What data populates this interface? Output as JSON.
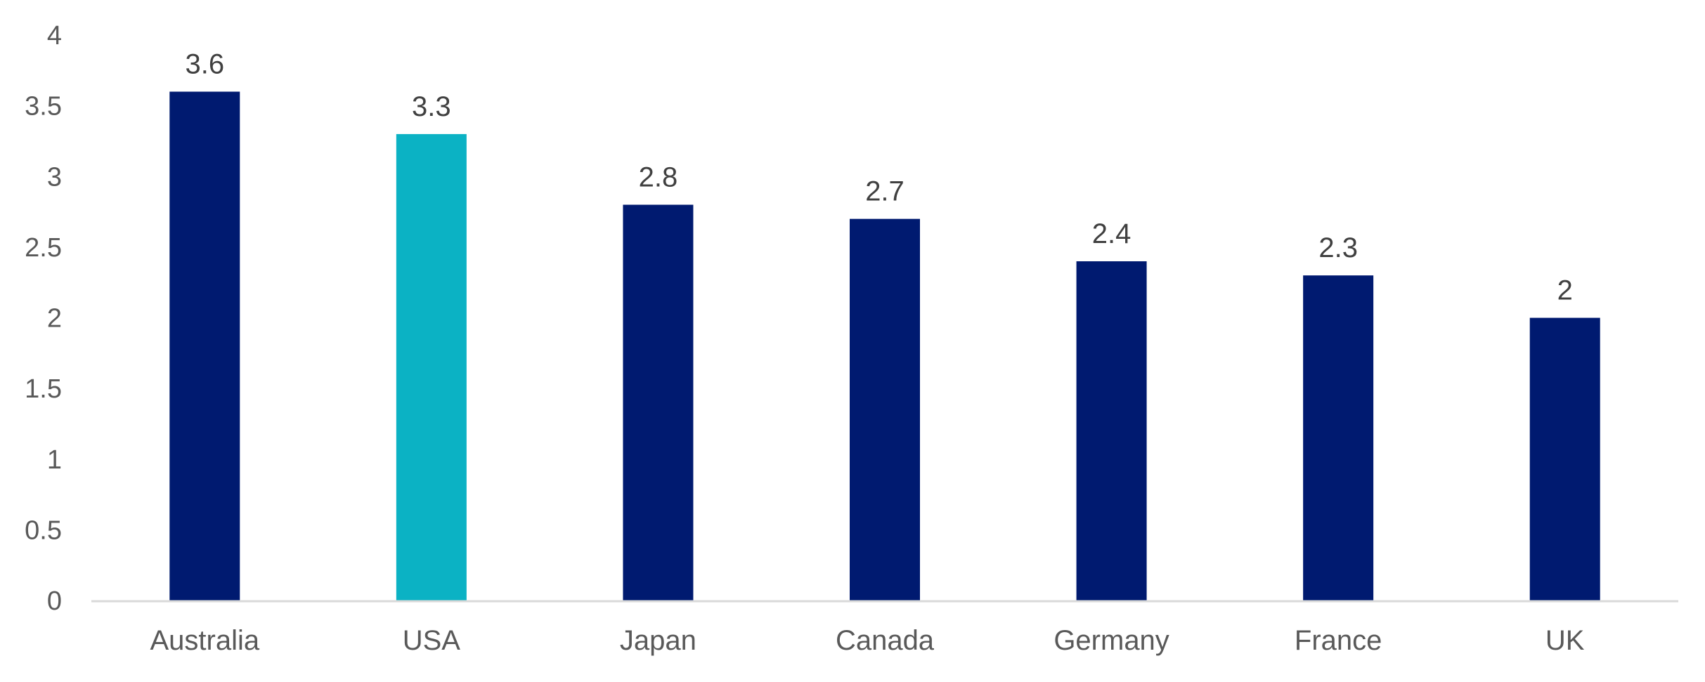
{
  "chart_data": {
    "type": "bar",
    "categories": [
      "Australia",
      "USA",
      "Japan",
      "Canada",
      "Germany",
      "France",
      "UK"
    ],
    "series": [
      {
        "values": [
          3.6,
          3.3,
          2.8,
          2.7,
          2.4,
          2.3,
          2
        ],
        "data_labels": [
          "3.6",
          "3.3",
          "2.8",
          "2.7",
          "2.4",
          "2.3",
          "2"
        ],
        "colors": [
          "#001a70",
          "#0bb2c4",
          "#001a70",
          "#001a70",
          "#001a70",
          "#001a70",
          "#001a70"
        ]
      }
    ],
    "ylim": [
      0,
      4
    ],
    "y_ticks": [
      0,
      0.5,
      1,
      1.5,
      2,
      2.5,
      3,
      3.5,
      4
    ],
    "y_tick_labels": [
      "0",
      "0.5",
      "1",
      "1.5",
      "2",
      "2.5",
      "3",
      "3.5",
      "4"
    ],
    "grid": false,
    "legend": "none",
    "axis_color": "#d9d9d9",
    "primary_color": "#001a70",
    "highlight_color": "#0bb2c4"
  }
}
